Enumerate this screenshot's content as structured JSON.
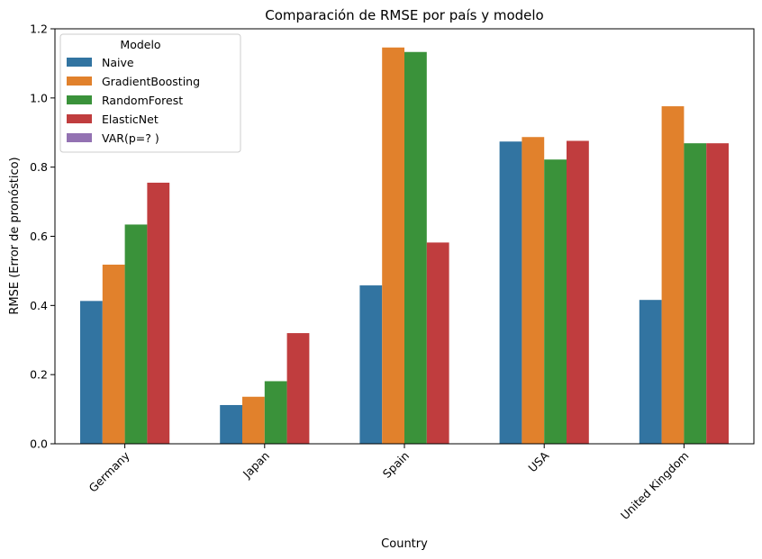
{
  "chart_data": {
    "type": "bar",
    "title": "Comparación de RMSE por país y modelo",
    "xlabel": "Country",
    "ylabel": "RMSE (Error de pronóstico)",
    "ylim": [
      0,
      1.2
    ],
    "yticks": [
      "0.0",
      "0.2",
      "0.4",
      "0.6",
      "0.8",
      "1.0",
      "1.2"
    ],
    "grid": false,
    "legend_title": "Modelo",
    "legend_position": "top-left",
    "categories": [
      "Germany",
      "Japan",
      "Spain",
      "USA",
      "United Kingdom"
    ],
    "series": [
      {
        "name": "Naive",
        "color": "#3274a1",
        "values": [
          0.413,
          0.112,
          0.458,
          0.874,
          0.416
        ]
      },
      {
        "name": "GradientBoosting",
        "color": "#e1812c",
        "values": [
          0.518,
          0.136,
          1.146,
          0.887,
          0.976
        ]
      },
      {
        "name": "RandomForest",
        "color": "#3a923a",
        "values": [
          0.634,
          0.181,
          1.133,
          0.822,
          0.869
        ]
      },
      {
        "name": "ElasticNet",
        "color": "#c03d3e",
        "values": [
          0.755,
          0.32,
          0.582,
          0.876,
          0.869
        ]
      },
      {
        "name": "VAR(p=? )",
        "color": "#9372b2",
        "values": [
          null,
          null,
          null,
          null,
          null
        ]
      }
    ]
  }
}
